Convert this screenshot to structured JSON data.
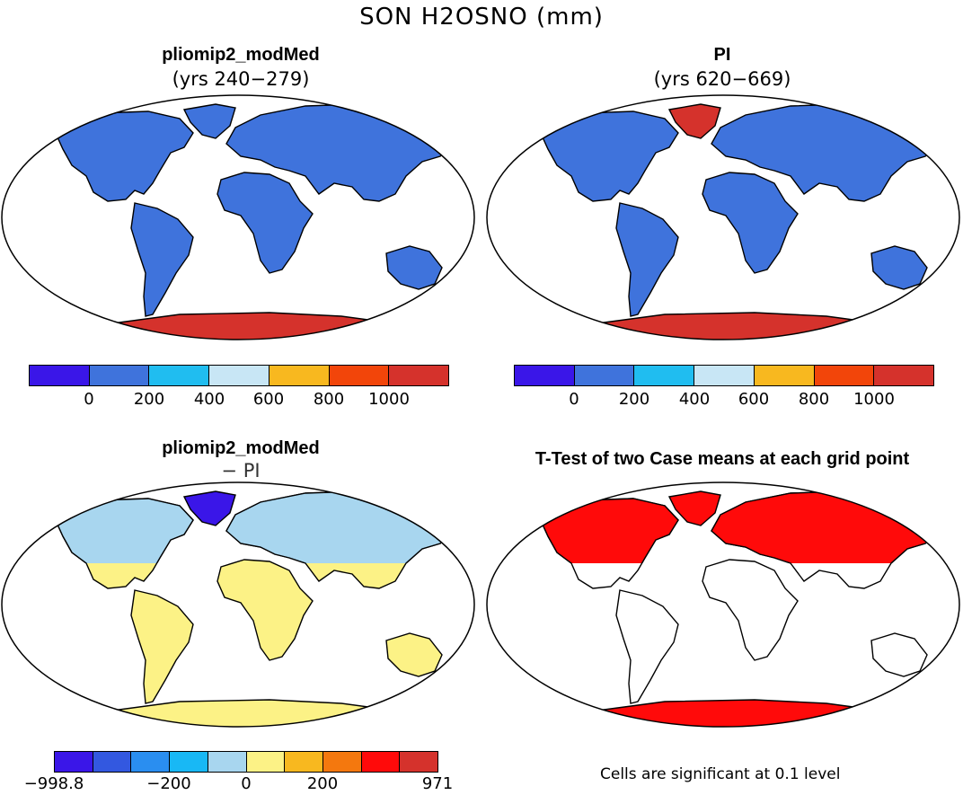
{
  "title": "SON H2OSNO (mm)",
  "panels": [
    {
      "title": "pliomip2_modMed",
      "subtitle": "(yrs 240−279)"
    },
    {
      "title": "PI",
      "subtitle": "(yrs 620−669)"
    },
    {
      "title": "pliomip2_modMed",
      "subtitle": "− PI"
    },
    {
      "title": "T-Test of two Case means at each grid point",
      "subtitle": ""
    }
  ],
  "colorbars": {
    "absolute": {
      "colors": [
        "#3a16e8",
        "#3f73dc",
        "#20bdf0",
        "#c8e6f5",
        "#f8b81f",
        "#f2450a",
        "#d5322c"
      ],
      "labels": [
        "0",
        "200",
        "400",
        "600",
        "800",
        "1000"
      ]
    },
    "difference": {
      "colors": [
        "#3a16e8",
        "#3358e0",
        "#2a8ef0",
        "#18b8f5",
        "#a8d6ef",
        "#fcf286",
        "#f8b81f",
        "#f4780e",
        "#ff0a0a",
        "#d5322c"
      ],
      "labels": [
        "−998.8",
        "−200",
        "0",
        "200",
        "971"
      ]
    }
  },
  "footnote": "Cells are significant at 0.1 level",
  "map_colors": {
    "land_abs": "#3f73dc",
    "snow_abs": "#d5322c",
    "land_diff": "#a8d6ef",
    "tropics_diff": "#fcf286",
    "greenland_diff": "#3a16e8",
    "significant": "#ff0a0a"
  }
}
